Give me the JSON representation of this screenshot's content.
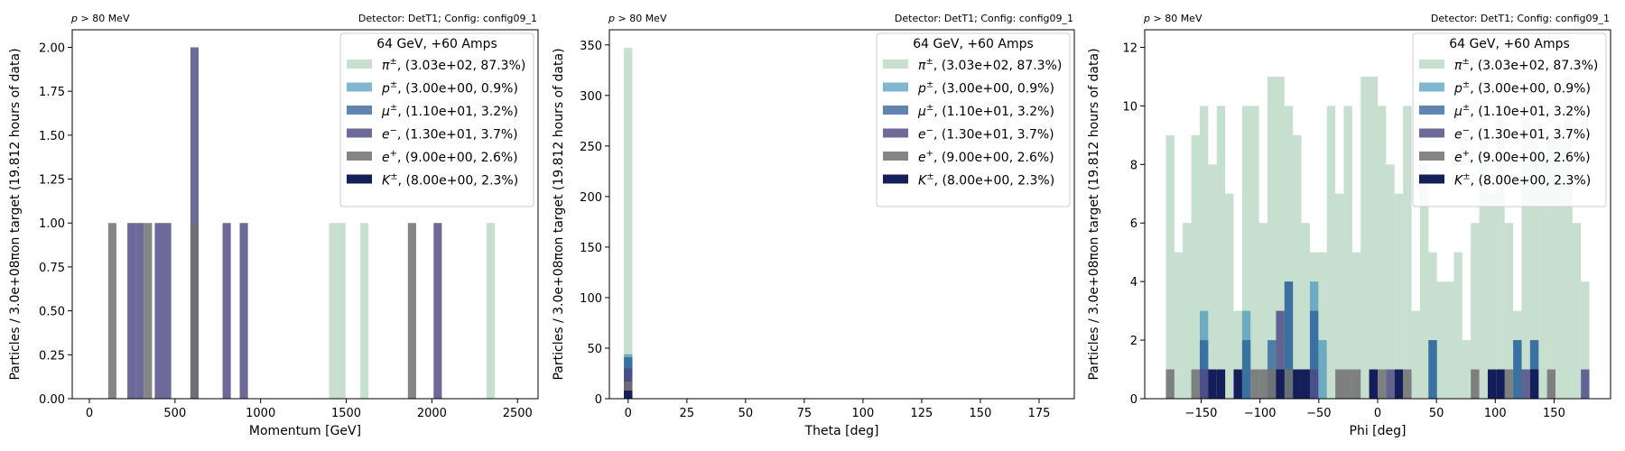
{
  "figure": {
    "background": "#ffffff"
  },
  "series_styles": [
    {
      "key": "pi",
      "color": "#8fbf9f",
      "opacity": 0.5
    },
    {
      "key": "p",
      "color": "#3e8fb8",
      "opacity": 0.65
    },
    {
      "key": "mu",
      "color": "#2a5d97",
      "opacity": 0.75
    },
    {
      "key": "e-",
      "color": "#4d4882",
      "opacity": 0.82
    },
    {
      "key": "e+",
      "color": "#707070",
      "opacity": 0.85
    },
    {
      "key": "K",
      "color": "#141e58",
      "opacity": 1.0
    }
  ],
  "chart_data": [
    {
      "type": "bar",
      "subtitle_left": "p > 80 MeV",
      "subtitle_right": "Detector: DetT1; Config: config09_1",
      "xlabel": "Momentum [GeV]",
      "ylabel": "Particles / 3.0e+08πon target (19.812 hours of data)",
      "xlim": [
        -100,
        2620
      ],
      "ylim": [
        0,
        2.1
      ],
      "xticks": [
        "0",
        "500",
        "1000",
        "1500",
        "2000",
        "2500"
      ],
      "xtick_values": [
        0,
        500,
        1000,
        1500,
        2000,
        2500
      ],
      "yticks": [
        "0.00",
        "0.25",
        "0.50",
        "0.75",
        "1.00",
        "1.25",
        "1.50",
        "1.75",
        "2.00"
      ],
      "ytick_values": [
        0,
        0.25,
        0.5,
        0.75,
        1.0,
        1.25,
        1.5,
        1.75,
        2.0
      ],
      "legend": {
        "title": "64 GeV, +60 Amps",
        "placement": "top-right",
        "entries": [
          {
            "symbol": "π",
            "sup": "±",
            "text": ", (3.03e+02, 87.3%)"
          },
          {
            "symbol": "p",
            "sup": "±",
            "text": ", (3.00e+00, 0.9%)"
          },
          {
            "symbol": "μ",
            "sup": "±",
            "text": ", (1.10e+01, 3.2%)"
          },
          {
            "symbol": "e",
            "sup": "−",
            "text": ", (1.30e+01, 3.7%)"
          },
          {
            "symbol": "e",
            "sup": "+",
            "text": ", (9.00e+00, 2.6%)"
          },
          {
            "symbol": "K",
            "sup": "±",
            "text": ", (8.00e+00, 2.3%)"
          }
        ]
      },
      "bin_width": 48,
      "series": [
        {
          "bars": [
            [
              1400,
              1
            ],
            [
              1448,
              1
            ],
            [
              1582,
              1
            ],
            [
              2320,
              1
            ]
          ]
        },
        {
          "bars": []
        },
        {
          "bars": []
        },
        {
          "bars": [
            [
              222,
              1
            ],
            [
              270,
              1
            ],
            [
              382,
              1
            ],
            [
              430,
              1
            ],
            [
              590,
              2
            ],
            [
              778,
              1
            ],
            [
              878,
              1
            ],
            [
              2010,
              1
            ]
          ]
        },
        {
          "bars": [
            [
              110,
              1
            ],
            [
              318,
              1
            ],
            [
              590,
              1
            ],
            [
              1860,
              1
            ]
          ]
        },
        {
          "bars": []
        }
      ]
    },
    {
      "type": "bar",
      "subtitle_left": "p > 80 MeV",
      "subtitle_right": "Detector: DetT1; Config: config09_1",
      "xlabel": "Theta [deg]",
      "ylabel": "Particles / 3.0e+08πon target (19.812 hours of data)",
      "xlim": [
        -8,
        190
      ],
      "ylim": [
        0,
        365
      ],
      "xticks": [
        "0",
        "25",
        "50",
        "75",
        "100",
        "125",
        "150",
        "175"
      ],
      "xtick_values": [
        0,
        25,
        50,
        75,
        100,
        125,
        150,
        175
      ],
      "yticks": [
        "0",
        "50",
        "100",
        "150",
        "200",
        "250",
        "300",
        "350"
      ],
      "ytick_values": [
        0,
        50,
        100,
        150,
        200,
        250,
        300,
        350
      ],
      "legend": {
        "title": "64 GeV, +60 Amps",
        "placement": "top-right",
        "entries": [
          {
            "symbol": "π",
            "sup": "±",
            "text": ", (3.03e+02, 87.3%)"
          },
          {
            "symbol": "p",
            "sup": "±",
            "text": ", (3.00e+00, 0.9%)"
          },
          {
            "symbol": "μ",
            "sup": "±",
            "text": ", (1.10e+01, 3.2%)"
          },
          {
            "symbol": "e",
            "sup": "−",
            "text": ", (1.30e+01, 3.7%)"
          },
          {
            "symbol": "e",
            "sup": "+",
            "text": ", (9.00e+00, 2.6%)"
          },
          {
            "symbol": "K",
            "sup": "±",
            "text": ", (8.00e+00, 2.3%)"
          }
        ]
      },
      "bin_width": 3.6,
      "series": [
        {
          "bars": [
            [
              -1.8,
              347
            ]
          ]
        },
        {
          "bars": [
            [
              -1.8,
              44
            ]
          ]
        },
        {
          "bars": [
            [
              -1.8,
              41
            ]
          ]
        },
        {
          "bars": [
            [
              -1.8,
              30
            ]
          ]
        },
        {
          "bars": [
            [
              -1.8,
              17
            ]
          ]
        },
        {
          "bars": [
            [
              -1.8,
              8
            ]
          ]
        }
      ]
    },
    {
      "type": "bar",
      "subtitle_left": "p > 80 MeV",
      "subtitle_right": "Detector: DetT1; Config: config09_1",
      "xlabel": "Phi [deg]",
      "ylabel": "Particles / 3.0e+08πon target (19.812 hours of data)",
      "xlim": [
        -198,
        198
      ],
      "ylim": [
        0,
        12.6
      ],
      "xticks": [
        "−150",
        "−100",
        "−50",
        "0",
        "50",
        "100",
        "150"
      ],
      "xtick_values": [
        -150,
        -100,
        -50,
        0,
        50,
        100,
        150
      ],
      "yticks": [
        "0",
        "2",
        "4",
        "6",
        "8",
        "10",
        "12"
      ],
      "ytick_values": [
        0,
        2,
        4,
        6,
        8,
        10,
        12
      ],
      "legend": {
        "title": "64 GeV, +60 Amps",
        "placement": "top-right",
        "entries": [
          {
            "symbol": "π",
            "sup": "±",
            "text": ", (3.03e+02, 87.3%)"
          },
          {
            "symbol": "p",
            "sup": "±",
            "text": ", (3.00e+00, 0.9%)"
          },
          {
            "symbol": "μ",
            "sup": "±",
            "text": ", (1.10e+01, 3.2%)"
          },
          {
            "symbol": "e",
            "sup": "−",
            "text": ", (1.30e+01, 3.7%)"
          },
          {
            "symbol": "e",
            "sup": "+",
            "text": ", (9.00e+00, 2.6%)"
          },
          {
            "symbol": "K",
            "sup": "±",
            "text": ", (8.00e+00, 2.3%)"
          }
        ]
      },
      "bin_width": 7.2,
      "series": [
        {
          "bars": [
            [
              -180,
              9
            ],
            [
              -172.8,
              5
            ],
            [
              -165.6,
              6
            ],
            [
              -158.4,
              9
            ],
            [
              -151.2,
              10
            ],
            [
              -144,
              8
            ],
            [
              -136.8,
              10
            ],
            [
              -129.6,
              7
            ],
            [
              -122.4,
              3
            ],
            [
              -115.2,
              10
            ],
            [
              -108,
              10
            ],
            [
              -100.8,
              6
            ],
            [
              -93.6,
              11
            ],
            [
              -86.4,
              11
            ],
            [
              -79.2,
              10
            ],
            [
              -72,
              9
            ],
            [
              -64.8,
              6
            ],
            [
              -57.6,
              5
            ],
            [
              -50.4,
              5
            ],
            [
              -43.2,
              10
            ],
            [
              -36,
              7
            ],
            [
              -28.8,
              10
            ],
            [
              -21.6,
              5
            ],
            [
              -14.4,
              11
            ],
            [
              -7.2,
              11
            ],
            [
              0,
              10
            ],
            [
              7.2,
              8
            ],
            [
              14.4,
              7
            ],
            [
              21.6,
              10
            ],
            [
              28.8,
              3
            ],
            [
              36,
              8
            ],
            [
              43.2,
              5
            ],
            [
              50.4,
              4
            ],
            [
              57.6,
              4
            ],
            [
              64.8,
              5
            ],
            [
              72,
              2
            ],
            [
              79.2,
              6
            ],
            [
              86.4,
              9
            ],
            [
              93.6,
              7
            ],
            [
              100.8,
              10
            ],
            [
              108,
              6
            ],
            [
              115.2,
              3
            ],
            [
              122.4,
              10
            ],
            [
              129.6,
              9
            ],
            [
              136.8,
              8
            ],
            [
              144,
              9
            ],
            [
              151.2,
              9
            ],
            [
              158.4,
              11
            ],
            [
              165.6,
              6
            ],
            [
              172.8,
              4
            ]
          ]
        },
        {
          "bars": [
            [
              -151.2,
              3
            ],
            [
              -115.2,
              3
            ],
            [
              -79.2,
              4
            ],
            [
              -57.6,
              4
            ],
            [
              -50.4,
              2
            ],
            [
              43.2,
              2
            ],
            [
              115.2,
              2
            ],
            [
              129.6,
              2
            ]
          ]
        },
        {
          "bars": [
            [
              -151.2,
              2
            ],
            [
              -115.2,
              2
            ],
            [
              -93.6,
              2
            ],
            [
              -79.2,
              4
            ],
            [
              -57.6,
              3
            ],
            [
              43.2,
              2
            ],
            [
              115.2,
              2
            ],
            [
              129.6,
              2
            ]
          ]
        },
        {
          "bars": [
            [
              -151.2,
              1
            ],
            [
              -86.4,
              3
            ],
            [
              -72,
              1
            ],
            [
              -57.6,
              1
            ],
            [
              7.2,
              1
            ],
            [
              122.4,
              1
            ],
            [
              172.8,
              1
            ]
          ]
        },
        {
          "bars": [
            [
              -180,
              1
            ],
            [
              -158.4,
              1
            ],
            [
              -108,
              1
            ],
            [
              -100.8,
              1
            ],
            [
              -93.6,
              1
            ],
            [
              -79.2,
              1
            ],
            [
              -64.8,
              1
            ],
            [
              -36,
              1
            ],
            [
              -28.8,
              1
            ],
            [
              -21.6,
              1
            ],
            [
              -7.2,
              1
            ],
            [
              0,
              1
            ],
            [
              21.6,
              1
            ],
            [
              79.2,
              1
            ],
            [
              108,
              1
            ],
            [
              144,
              1
            ]
          ]
        },
        {
          "bars": [
            [
              -144,
              1
            ],
            [
              -136.8,
              1
            ],
            [
              -122.4,
              1
            ],
            [
              -86.4,
              1
            ],
            [
              -72,
              1
            ],
            [
              -64.8,
              1
            ],
            [
              -7.2,
              1
            ],
            [
              14.4,
              1
            ],
            [
              93.6,
              1
            ],
            [
              100.8,
              1
            ],
            [
              129.6,
              1
            ]
          ]
        }
      ]
    }
  ]
}
